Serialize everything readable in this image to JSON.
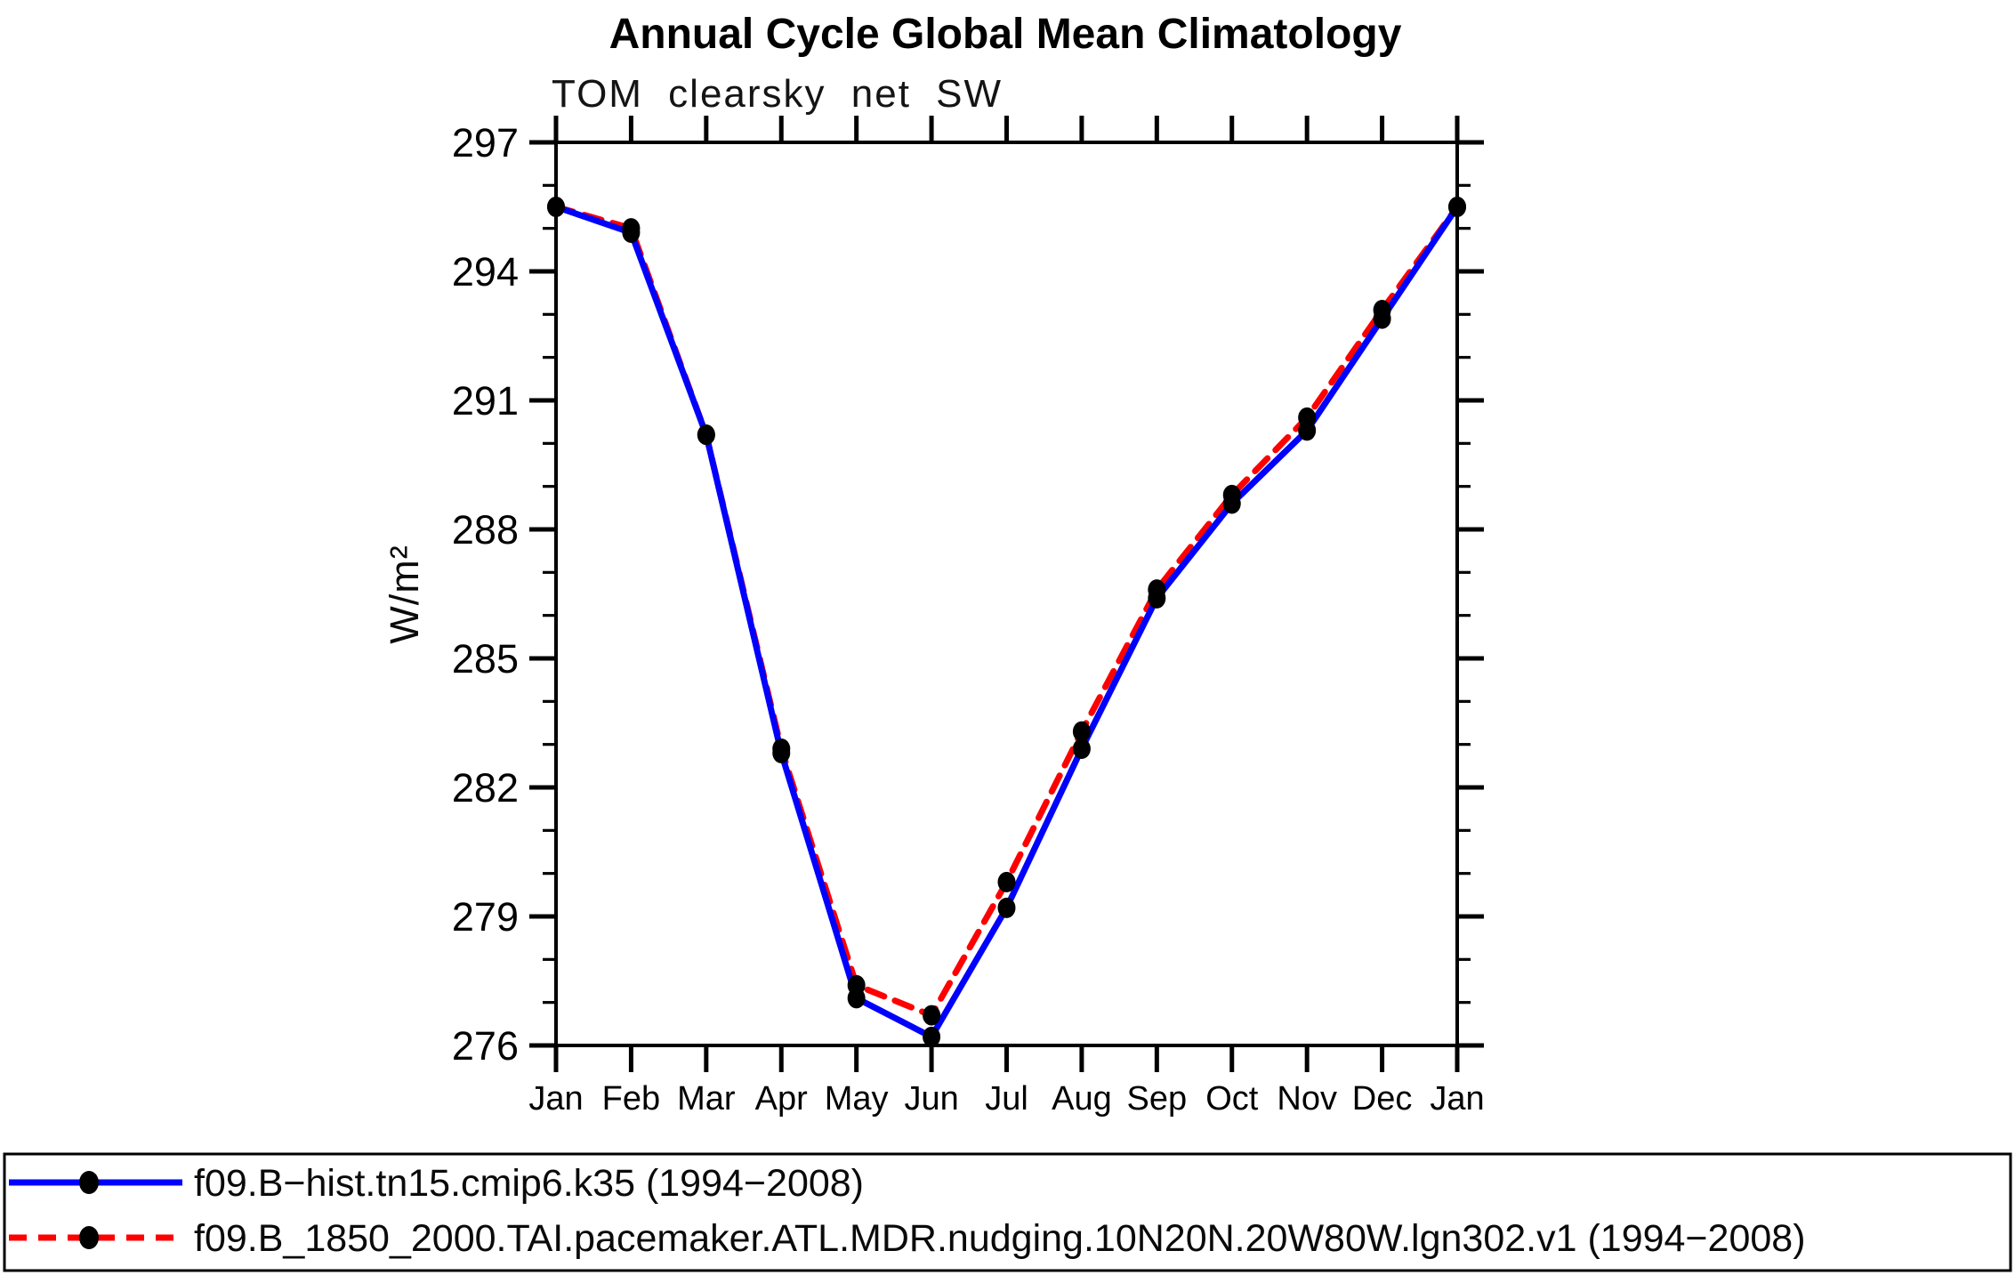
{
  "page": {
    "background": "#ffffff",
    "frame_color": "#000000"
  },
  "chart_data": {
    "type": "line",
    "title": "Annual Cycle Global Mean Climatology",
    "subtitle": "TOM clearsky net SW",
    "ylabel": "W/m²",
    "xlabel": "",
    "categories": [
      "Jan",
      "Feb",
      "Mar",
      "Apr",
      "May",
      "Jun",
      "Jul",
      "Aug",
      "Sep",
      "Oct",
      "Nov",
      "Dec",
      "Jan"
    ],
    "ylim": [
      276,
      297
    ],
    "ytick_major_step": 3,
    "ytick_minor_step": 1,
    "ytick_labels": [
      "276",
      "279",
      "282",
      "285",
      "288",
      "291",
      "294",
      "297"
    ],
    "grid": false,
    "legend_position": "bottom-box",
    "series": [
      {
        "name": "f09.B−hist.tn15.cmip6.k35 (1994−2008)",
        "color": "#0000ff",
        "line_style": "solid",
        "marker": "filled-black-circle",
        "values": [
          295.5,
          294.9,
          290.2,
          282.8,
          277.1,
          276.2,
          279.2,
          282.9,
          286.4,
          288.6,
          290.3,
          292.9,
          295.5
        ]
      },
      {
        "name": "f09.B_1850_2000.TAI.pacemaker.ATL.MDR.nudging.10N20N.20W80W.lgn302.v1 (1994−2008)",
        "color": "#ff0000",
        "line_style": "dashed",
        "marker": "filled-black-circle",
        "values": [
          295.5,
          295.0,
          290.2,
          282.9,
          277.4,
          276.7,
          279.8,
          283.3,
          286.6,
          288.8,
          290.6,
          293.1,
          295.5
        ]
      }
    ]
  }
}
